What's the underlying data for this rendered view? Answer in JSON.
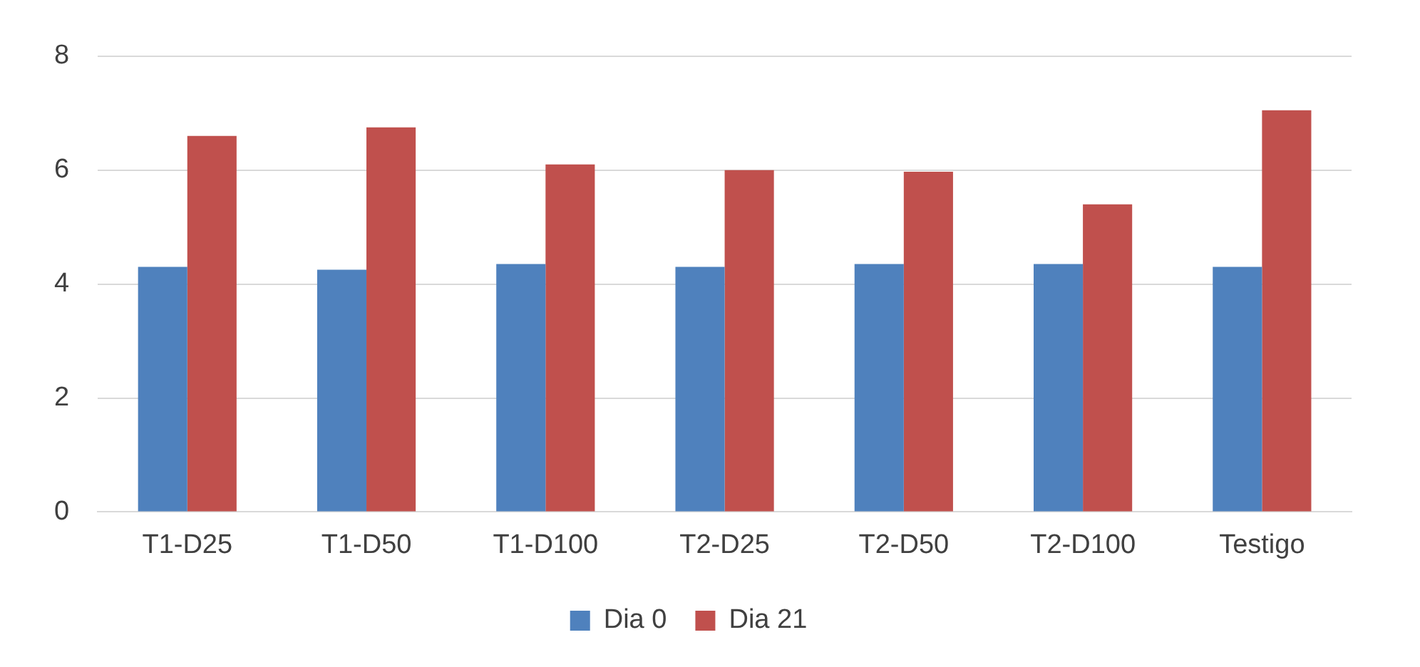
{
  "chart_data": {
    "type": "bar",
    "categories": [
      "T1-D25",
      "T1-D50",
      "T1-D100",
      "T2-D25",
      "T2-D50",
      "T2-D100",
      "Testigo"
    ],
    "series": [
      {
        "name": "Dia 0",
        "color": "#4f81bd",
        "values": [
          4.3,
          4.25,
          4.35,
          4.3,
          4.35,
          4.35,
          4.3
        ]
      },
      {
        "name": "Dia 21",
        "color": "#c0504d",
        "values": [
          6.6,
          6.75,
          6.1,
          6.0,
          5.97,
          5.4,
          7.05
        ]
      }
    ],
    "ylim": [
      0,
      8
    ],
    "yticks": [
      0,
      2,
      4,
      6,
      8
    ],
    "grid": "y",
    "legend": "bottom"
  }
}
